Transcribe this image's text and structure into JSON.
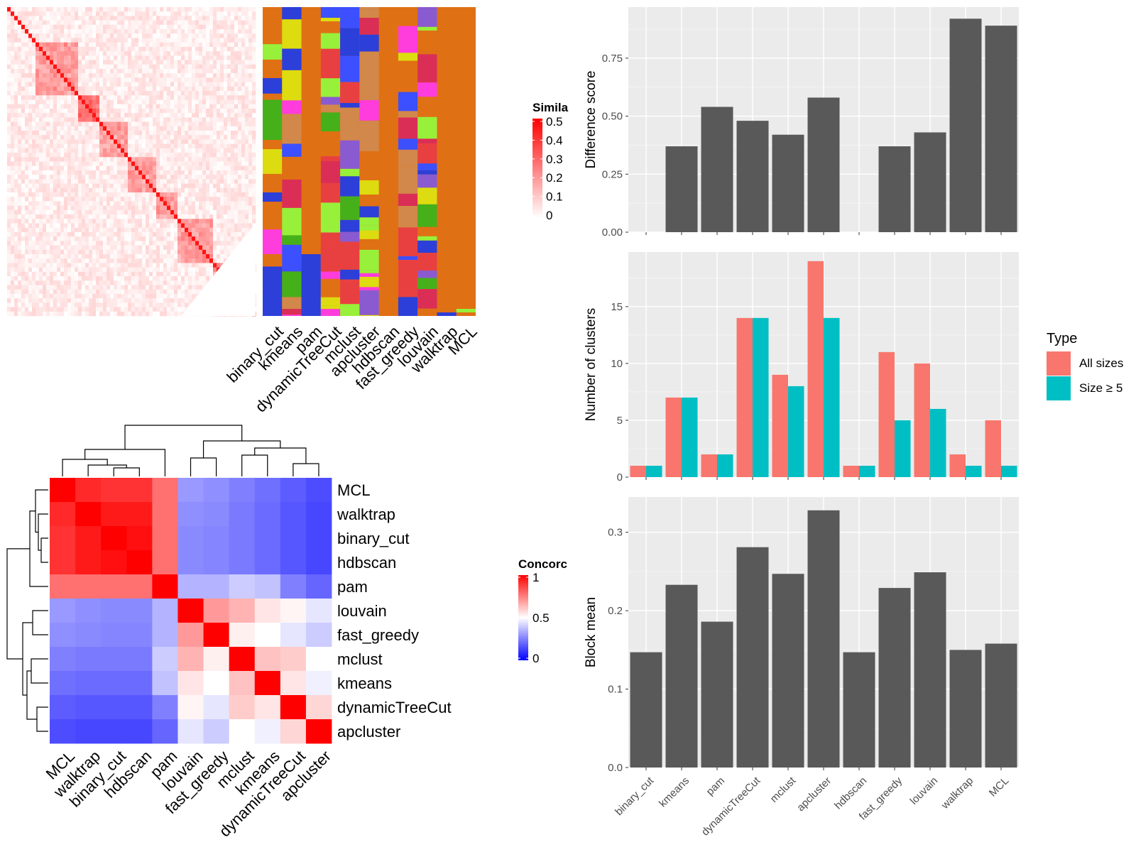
{
  "similarity_heatmap": {
    "legend_title": "Simila",
    "legend_ticks": [
      "0.5",
      "0.4",
      "0.3",
      "0.2",
      "0.1",
      "0"
    ],
    "columns": [
      "binary_cut",
      "kmeans",
      "pam",
      "dynamicTreeCut",
      "mclust",
      "apcluster",
      "hdbscan",
      "fast_greedy",
      "louvain",
      "walktrap",
      "MCL"
    ]
  },
  "concordance_heatmap": {
    "legend_title": "Concorc",
    "legend_ticks": [
      "1",
      "0.5",
      "0"
    ],
    "methods": [
      "MCL",
      "walktrap",
      "binary_cut",
      "hdbscan",
      "pam",
      "louvain",
      "fast_greedy",
      "mclust",
      "kmeans",
      "dynamicTreeCut",
      "apcluster"
    ],
    "values": [
      [
        1.0,
        0.92,
        0.9,
        0.9,
        0.78,
        0.3,
        0.28,
        0.25,
        0.22,
        0.18,
        0.15
      ],
      [
        0.92,
        1.0,
        0.95,
        0.95,
        0.78,
        0.28,
        0.27,
        0.24,
        0.21,
        0.17,
        0.14
      ],
      [
        0.9,
        0.95,
        1.0,
        0.97,
        0.78,
        0.27,
        0.26,
        0.24,
        0.21,
        0.17,
        0.14
      ],
      [
        0.9,
        0.95,
        0.97,
        1.0,
        0.78,
        0.27,
        0.26,
        0.24,
        0.21,
        0.17,
        0.14
      ],
      [
        0.78,
        0.78,
        0.78,
        0.78,
        1.0,
        0.35,
        0.35,
        0.4,
        0.38,
        0.25,
        0.2
      ],
      [
        0.3,
        0.28,
        0.27,
        0.27,
        0.35,
        1.0,
        0.7,
        0.65,
        0.55,
        0.52,
        0.45
      ],
      [
        0.28,
        0.27,
        0.26,
        0.26,
        0.35,
        0.7,
        1.0,
        0.53,
        0.5,
        0.45,
        0.4
      ],
      [
        0.25,
        0.24,
        0.24,
        0.24,
        0.4,
        0.65,
        0.53,
        1.0,
        0.62,
        0.6,
        0.5
      ],
      [
        0.22,
        0.21,
        0.21,
        0.21,
        0.38,
        0.55,
        0.5,
        0.62,
        1.0,
        0.55,
        0.47
      ],
      [
        0.18,
        0.17,
        0.17,
        0.17,
        0.25,
        0.52,
        0.45,
        0.6,
        0.55,
        1.0,
        0.58
      ],
      [
        0.15,
        0.14,
        0.14,
        0.14,
        0.2,
        0.45,
        0.4,
        0.5,
        0.47,
        0.58,
        1.0
      ]
    ]
  },
  "chart_data": [
    {
      "type": "bar",
      "categories": [
        "binary_cut",
        "kmeans",
        "pam",
        "dynamicTreeCut",
        "mclust",
        "apcluster",
        "hdbscan",
        "fast_greedy",
        "louvain",
        "walktrap",
        "MCL"
      ],
      "values": [
        0,
        0.37,
        0.54,
        0.48,
        0.42,
        0.58,
        0,
        0.37,
        0.43,
        0.92,
        0.89
      ],
      "ylabel": "Difference score",
      "ylim": [
        0,
        0.97
      ],
      "yticks": [
        "0.00",
        "0.25",
        "0.50",
        "0.75"
      ],
      "yticks_values": [
        0,
        0.25,
        0.5,
        0.75
      ],
      "bar_color": "#595959",
      "grid": true
    },
    {
      "type": "bar",
      "categories": [
        "binary_cut",
        "kmeans",
        "pam",
        "dynamicTreeCut",
        "mclust",
        "apcluster",
        "hdbscan",
        "fast_greedy",
        "louvain",
        "walktrap",
        "MCL"
      ],
      "series": [
        {
          "name": "All sizes",
          "values": [
            1,
            7,
            2,
            14,
            9,
            19,
            1,
            11,
            10,
            2,
            5
          ],
          "color": "#F8766D"
        },
        {
          "name": "Size ≥ 5",
          "values": [
            1,
            7,
            2,
            14,
            8,
            14,
            1,
            5,
            6,
            1,
            1
          ],
          "color": "#00BFC4"
        }
      ],
      "ylabel": "Number of clusters",
      "ylim": [
        0,
        19.8
      ],
      "yticks": [
        "0",
        "5",
        "10",
        "15"
      ],
      "yticks_values": [
        0,
        5,
        10,
        15
      ],
      "legend_title": "Type",
      "legend_position": "right",
      "grid": true
    },
    {
      "type": "bar",
      "categories": [
        "binary_cut",
        "kmeans",
        "pam",
        "dynamicTreeCut",
        "mclust",
        "apcluster",
        "hdbscan",
        "fast_greedy",
        "louvain",
        "walktrap",
        "MCL"
      ],
      "values": [
        0.147,
        0.233,
        0.186,
        0.281,
        0.247,
        0.328,
        0.147,
        0.229,
        0.249,
        0.15,
        0.158
      ],
      "ylabel": "Block mean",
      "ylim": [
        0,
        0.345
      ],
      "yticks": [
        "0.0",
        "0.1",
        "0.2",
        "0.3"
      ],
      "yticks_values": [
        0,
        0.1,
        0.2,
        0.3
      ],
      "bar_color": "#595959",
      "grid": true
    }
  ]
}
